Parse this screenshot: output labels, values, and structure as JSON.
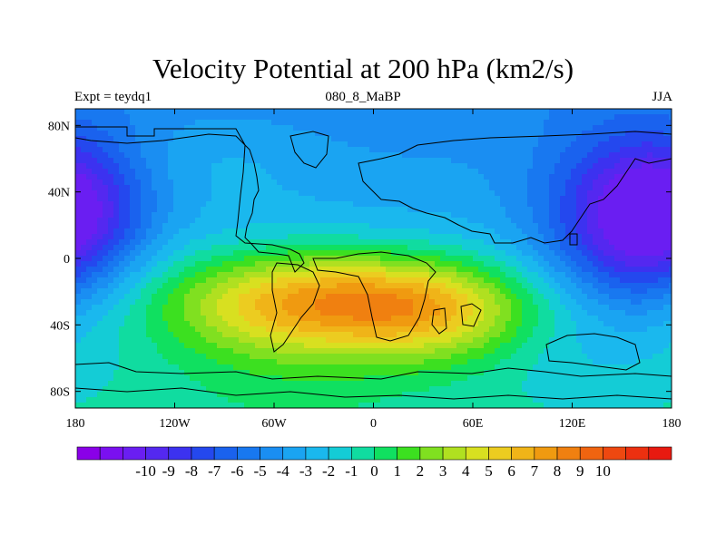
{
  "title": "Velocity Potential at 200 hPa (km2/s)",
  "left_label": "Expt = teydq1",
  "center_label": "080_8_MaBP",
  "right_label": "JJA",
  "lat_ticks": [
    "80N",
    "40N",
    "0",
    "40S",
    "80S"
  ],
  "lon_ticks": [
    "180",
    "120W",
    "60W",
    "0",
    "60E",
    "120E",
    "180"
  ],
  "colorbar": {
    "labels": [
      "-10",
      "-9",
      "-8",
      "-7",
      "-6",
      "-5",
      "-4",
      "-3",
      "-2",
      "-1",
      "0",
      "1",
      "2",
      "3",
      "4",
      "5",
      "6",
      "7",
      "8",
      "9",
      "10"
    ],
    "colors": [
      "#8a00e8",
      "#7a10f0",
      "#6a1ef2",
      "#5428f0",
      "#3c32f0",
      "#2448ee",
      "#1a62ee",
      "#1878f0",
      "#1a8ef2",
      "#1aa4f2",
      "#1ab8ee",
      "#14ccd6",
      "#10dca0",
      "#10e060",
      "#3ce020",
      "#80e020",
      "#b0e020",
      "#d8e020",
      "#eccc20",
      "#f0b418",
      "#f09a10",
      "#f08010",
      "#f06410",
      "#ee4810",
      "#ec3010",
      "#e81a10"
    ]
  },
  "chart_data": {
    "type": "heatmap",
    "field": "Velocity Potential at 200 hPa",
    "units": "km2/s",
    "season": "JJA",
    "lon_range": [
      -180,
      180
    ],
    "lat_range": [
      -90,
      90
    ],
    "levels": [
      -10,
      -9,
      -8,
      -7,
      -6,
      -5,
      -4,
      -3,
      -2,
      -1,
      0,
      1,
      2,
      3,
      4,
      5,
      6,
      7,
      8,
      9,
      10
    ],
    "features": [
      {
        "lon": -20,
        "lat": -25,
        "value": 10.5,
        "sx": 70,
        "sy": 20
      },
      {
        "lon": 40,
        "lat": -35,
        "value": 3.5,
        "sx": 40,
        "sy": 22
      },
      {
        "lon": -50,
        "lat": -40,
        "value": 2.5,
        "sx": 60,
        "sy": 35
      },
      {
        "lon": 150,
        "lat": 20,
        "value": -13.5,
        "sx": 35,
        "sy": 35
      },
      {
        "lon": 170,
        "lat": 55,
        "value": -4,
        "sx": 30,
        "sy": 20
      },
      {
        "lon": -178,
        "lat": 25,
        "value": -11,
        "sx": 30,
        "sy": 30
      },
      {
        "lon": -150,
        "lat": 30,
        "value": -3,
        "sx": 25,
        "sy": 20
      },
      {
        "lon": 120,
        "lat": -60,
        "value": -3.5,
        "sx": 35,
        "sy": 15
      },
      {
        "lon": -90,
        "lat": 60,
        "value": -1,
        "sx": 40,
        "sy": 20
      }
    ],
    "background_value": -2.8
  }
}
